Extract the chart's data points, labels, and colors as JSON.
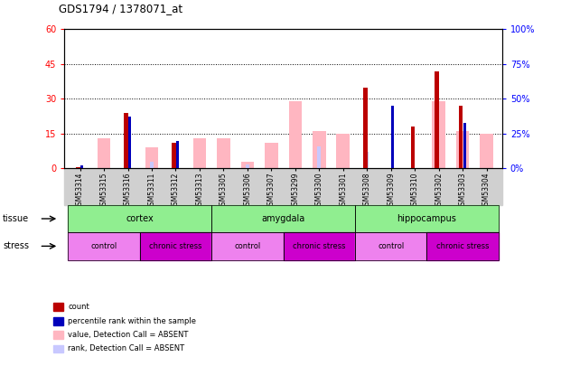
{
  "title": "GDS1794 / 1378071_at",
  "samples": [
    "GSM53314",
    "GSM53315",
    "GSM53316",
    "GSM53311",
    "GSM53312",
    "GSM53313",
    "GSM53305",
    "GSM53306",
    "GSM53307",
    "GSM53299",
    "GSM53300",
    "GSM53301",
    "GSM53308",
    "GSM53309",
    "GSM53310",
    "GSM53302",
    "GSM53303",
    "GSM53304"
  ],
  "count": [
    0.5,
    0,
    24,
    0,
    11,
    0,
    0,
    0,
    0,
    0,
    0,
    0,
    35,
    0,
    18,
    42,
    27,
    0
  ],
  "percentile_rank": [
    2,
    0,
    37,
    0,
    20,
    0,
    0,
    0,
    0,
    0,
    0,
    0,
    0,
    45,
    0,
    0,
    33,
    0
  ],
  "absent_value": [
    0,
    13,
    0,
    9,
    0,
    13,
    13,
    3,
    11,
    29,
    16,
    15,
    0,
    0,
    0,
    29,
    16,
    15
  ],
  "absent_rank": [
    1,
    0,
    0,
    5,
    7,
    0,
    0,
    3,
    0,
    0,
    16,
    0,
    12,
    0,
    0,
    0,
    0,
    0
  ],
  "ylim_left": [
    0,
    60
  ],
  "ylim_right": [
    0,
    100
  ],
  "yticks_left": [
    0,
    15,
    30,
    45,
    60
  ],
  "yticks_right": [
    0,
    25,
    50,
    75,
    100
  ],
  "tissue_groups": [
    {
      "label": "cortex",
      "start": 0,
      "end": 6
    },
    {
      "label": "amygdala",
      "start": 6,
      "end": 12
    },
    {
      "label": "hippocampus",
      "start": 12,
      "end": 18
    }
  ],
  "stress_groups": [
    {
      "label": "control",
      "start": 0,
      "end": 3
    },
    {
      "label": "chronic stress",
      "start": 3,
      "end": 6
    },
    {
      "label": "control",
      "start": 6,
      "end": 9
    },
    {
      "label": "chronic stress",
      "start": 9,
      "end": 12
    },
    {
      "label": "control",
      "start": 12,
      "end": 15
    },
    {
      "label": "chronic stress",
      "start": 15,
      "end": 18
    }
  ],
  "tissue_color": "#90ee90",
  "stress_control_color": "#ee82ee",
  "stress_chronic_color": "#cc00cc",
  "color_count": "#bb0000",
  "color_percentile": "#0000bb",
  "color_absent_value": "#ffb6c1",
  "color_absent_rank": "#c8c8ff",
  "legend_items": [
    {
      "label": "count",
      "color": "#bb0000"
    },
    {
      "label": "percentile rank within the sample",
      "color": "#0000bb"
    },
    {
      "label": "value, Detection Call = ABSENT",
      "color": "#ffb6c1"
    },
    {
      "label": "rank, Detection Call = ABSENT",
      "color": "#c8c8ff"
    }
  ],
  "xticklabel_bg": "#d0d0d0"
}
